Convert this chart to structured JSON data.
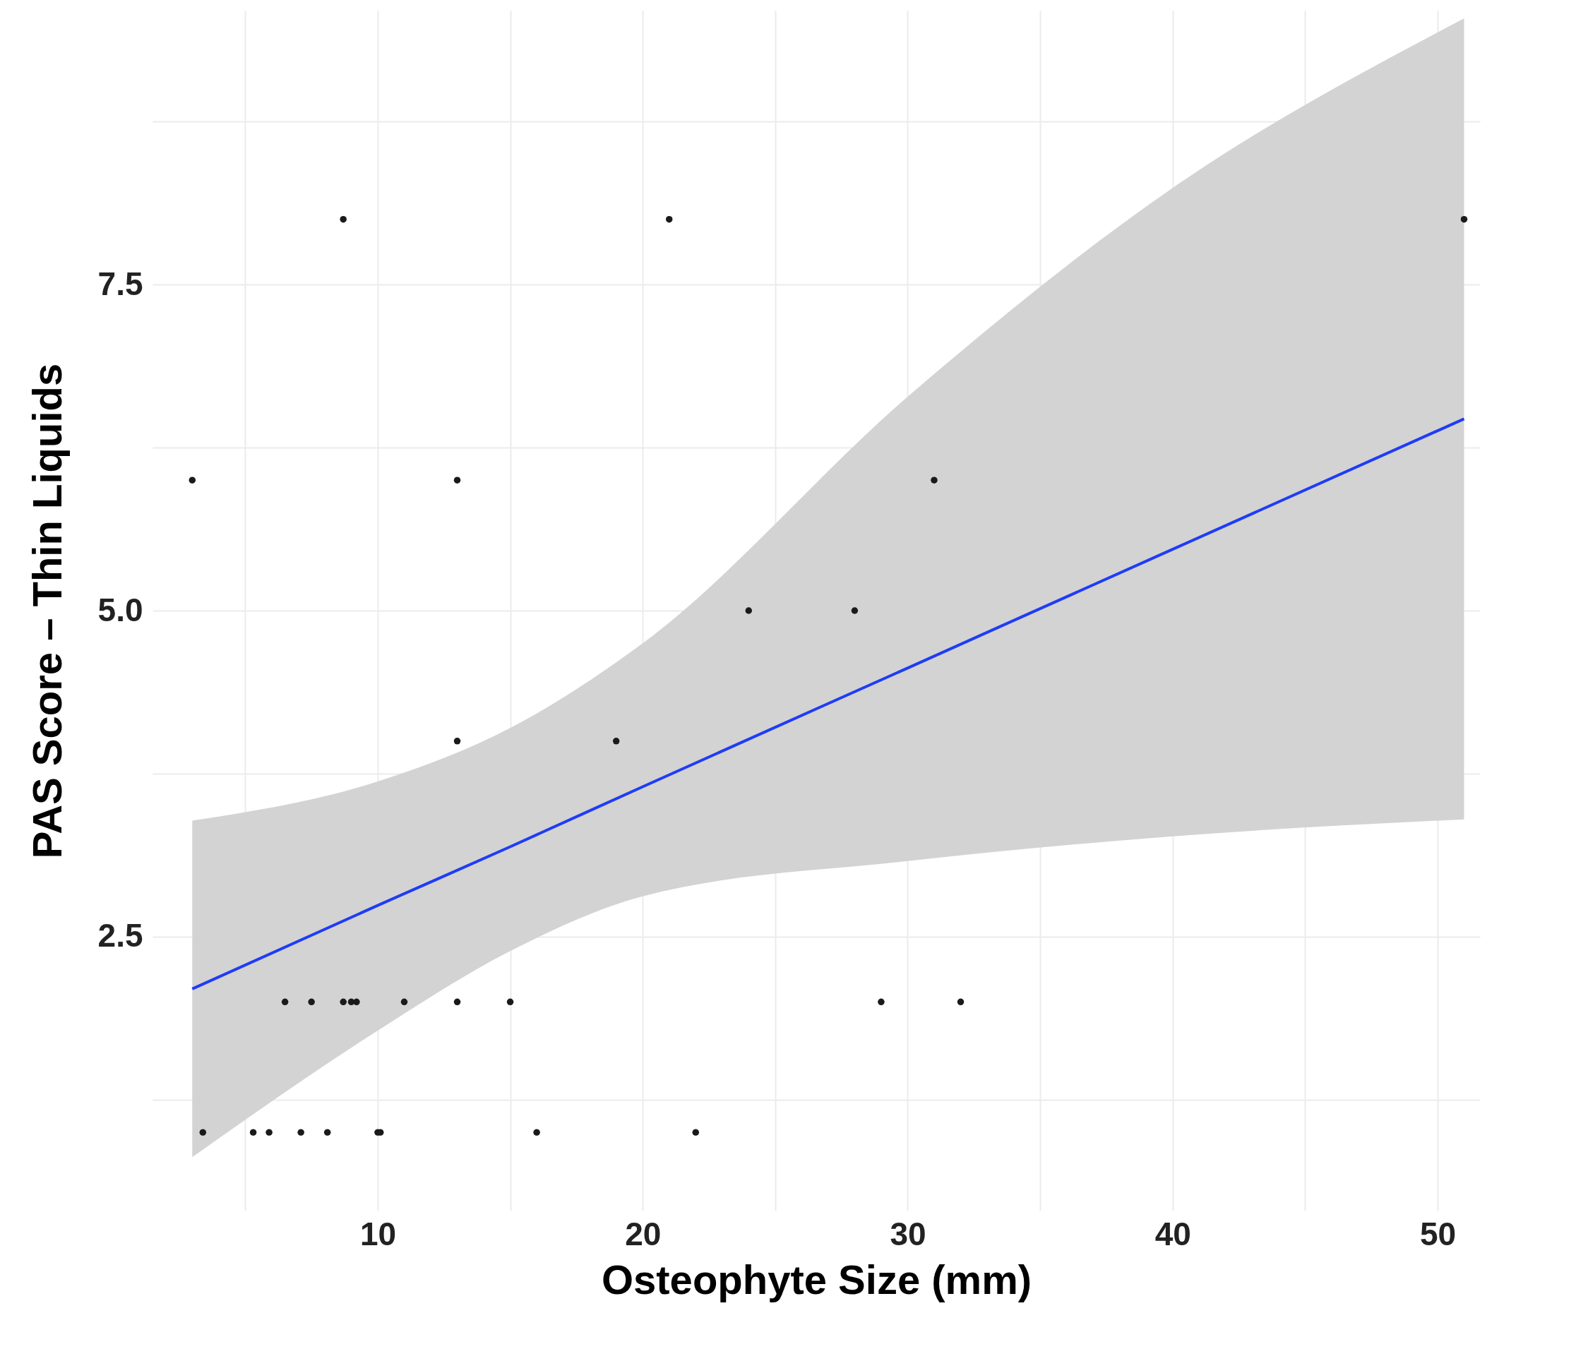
{
  "chart_data": {
    "type": "scatter",
    "xlabel": "Osteophyte Size (mm)",
    "ylabel": "PAS Score – Thin Liquids",
    "xlim": [
      1.5,
      51.6
    ],
    "ylim": [
      0.4,
      9.6
    ],
    "xticks": [
      {
        "value": 5,
        "label": null
      },
      10,
      {
        "value": 15,
        "label": null
      },
      20,
      {
        "value": 25,
        "label": null
      },
      30,
      {
        "value": 35,
        "label": null
      },
      40,
      {
        "value": 45,
        "label": null
      },
      50
    ],
    "yticks": [
      {
        "value": 1.25,
        "label": null
      },
      2.5,
      {
        "value": 3.75,
        "label": null
      },
      {
        "value": 5,
        "label": "5.0"
      },
      {
        "value": 6.25,
        "label": null
      },
      7.5,
      {
        "value": 8.75,
        "label": null
      }
    ],
    "grid": true,
    "series": [
      {
        "type": "scatter",
        "marker": "circle",
        "color": "#1a1a1a",
        "x": [
          8.7,
          21,
          51,
          3,
          13,
          31,
          24,
          28,
          13,
          19,
          6.5,
          7.5,
          8.7,
          9,
          9.2,
          11,
          13,
          15,
          29,
          32,
          3.4,
          5.3,
          5.9,
          7.1,
          8.1,
          10,
          10.1,
          16,
          22
        ],
        "values": [
          8,
          8,
          8,
          6,
          6,
          6,
          5,
          5,
          4,
          4,
          2,
          2,
          2,
          2,
          2,
          2,
          2,
          2,
          2,
          2,
          1,
          1,
          1,
          1,
          1,
          1,
          1,
          1,
          1
        ]
      },
      {
        "type": "line",
        "color": "#1f3cf5",
        "x": [
          3,
          10,
          15,
          20,
          30,
          40,
          51
        ],
        "values": [
          2.1,
          2.74,
          3.19,
          3.65,
          4.56,
          5.47,
          6.47
        ],
        "lower": [
          0.81,
          1.78,
          2.39,
          2.81,
          3.08,
          3.27,
          3.4
        ],
        "upper": [
          3.39,
          3.69,
          4.1,
          4.75,
          6.64,
          8.24,
          9.54
        ]
      }
    ]
  }
}
